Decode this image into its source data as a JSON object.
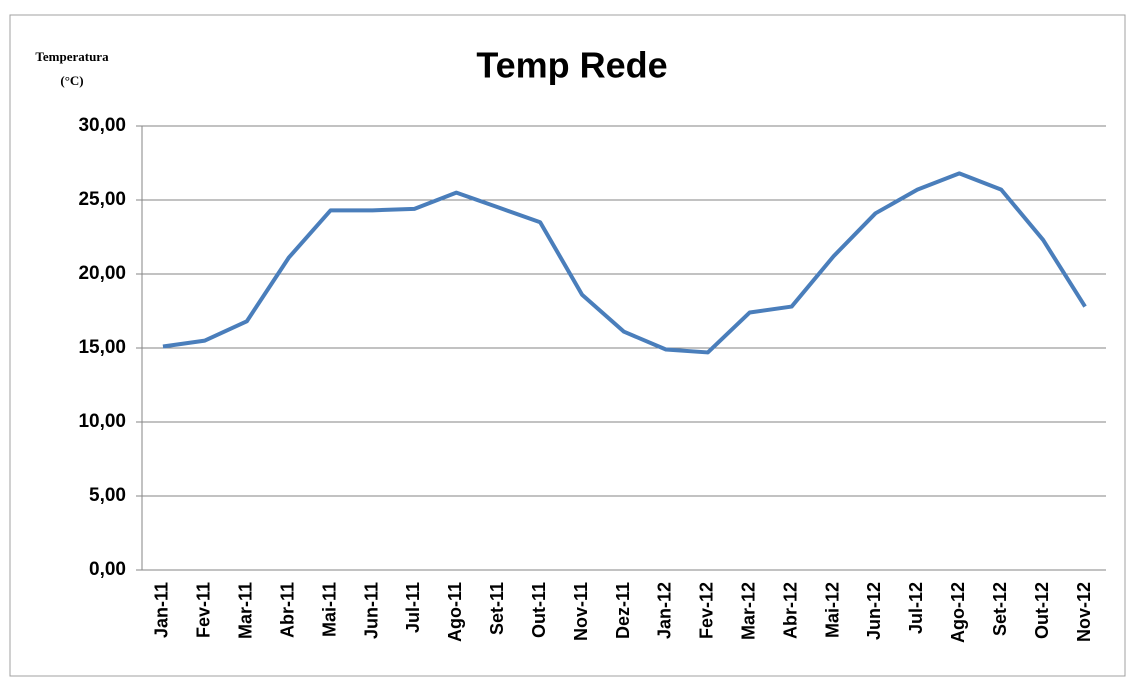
{
  "chart_data": {
    "type": "line",
    "title": "Temp Rede",
    "y_label": [
      "Temperatura",
      "(°C)"
    ],
    "categories": [
      "Jan-11",
      "Fev-11",
      "Mar-11",
      "Abr-11",
      "Mai-11",
      "Jun-11",
      "Jul-11",
      "Ago-11",
      "Set-11",
      "Out-11",
      "Nov-11",
      "Dez-11",
      "Jan-12",
      "Fev-12",
      "Mar-12",
      "Abr-12",
      "Mai-12",
      "Jun-12",
      "Jul-12",
      "Ago-12",
      "Set-12",
      "Out-12",
      "Nov-12"
    ],
    "series": [
      {
        "name": "Temp Rede",
        "color": "#4a7ebb",
        "values": [
          15.1,
          15.5,
          16.8,
          21.1,
          24.3,
          24.3,
          24.4,
          25.5,
          24.5,
          23.5,
          18.6,
          16.1,
          14.9,
          14.7,
          17.4,
          17.8,
          21.2,
          24.1,
          25.7,
          26.8,
          25.7,
          22.3,
          17.8
        ]
      }
    ],
    "ylim": [
      0,
      30
    ],
    "yticks": [
      {
        "value": 0,
        "label": "0,00"
      },
      {
        "value": 5,
        "label": "5,00"
      },
      {
        "value": 10,
        "label": "10,00"
      },
      {
        "value": 15,
        "label": "15,00"
      },
      {
        "value": 20,
        "label": "20,00"
      },
      {
        "value": 25,
        "label": "25,00"
      },
      {
        "value": 30,
        "label": "30,00"
      }
    ],
    "grid": true
  }
}
